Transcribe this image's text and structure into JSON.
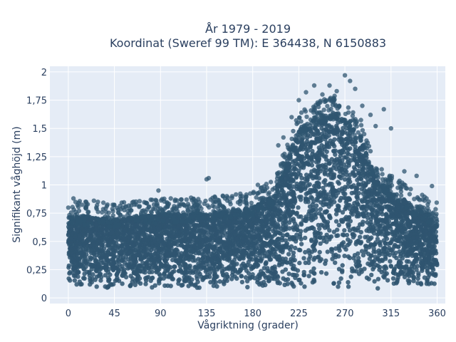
{
  "chart_data": {
    "type": "scatter",
    "title_lines": [
      "År 1979 - 2019",
      "Koordinat (Sweref 99 TM): E 364438, N 6150883"
    ],
    "xlabel": "Vågriktning (grader)",
    "ylabel": "Signifikant våghöjd (m)",
    "xlim": [
      -18,
      368
    ],
    "ylim": [
      -0.05,
      2.05
    ],
    "x_ticks": [
      0,
      45,
      90,
      135,
      180,
      225,
      270,
      315,
      360
    ],
    "x_tick_labels": [
      "0",
      "45",
      "90",
      "135",
      "180",
      "225",
      "270",
      "315",
      "360"
    ],
    "y_ticks": [
      0,
      0.25,
      0.5,
      0.75,
      1,
      1.25,
      1.5,
      1.75,
      2
    ],
    "y_tick_labels": [
      "0",
      "0,25",
      "0,5",
      "0,75",
      "1",
      "1,25",
      "1,5",
      "1,75",
      "2"
    ],
    "grid": true,
    "legend": "none",
    "colors": {
      "marker": "#2f5570",
      "plot_background": "#e5ecf6",
      "grid": "#ffffff"
    },
    "envelope": {
      "direction": [
        0,
        20,
        45,
        90,
        135,
        180,
        200,
        225,
        245,
        260,
        270,
        285,
        300,
        315,
        340,
        360
      ],
      "min_height": [
        0.1,
        0.1,
        0.07,
        0.08,
        0.08,
        0.08,
        0.08,
        0.08,
        0.08,
        0.08,
        0.08,
        0.08,
        0.08,
        0.08,
        0.1,
        0.1
      ],
      "max_height": [
        0.72,
        0.72,
        0.7,
        0.74,
        0.75,
        0.8,
        0.9,
        1.5,
        1.62,
        1.65,
        1.6,
        1.45,
        1.05,
        0.95,
        0.8,
        0.7
      ]
    },
    "outliers": [
      {
        "x": 5,
        "y": 0.88
      },
      {
        "x": 10,
        "y": 0.84
      },
      {
        "x": 25,
        "y": 0.86
      },
      {
        "x": 88,
        "y": 0.95
      },
      {
        "x": 100,
        "y": 0.88
      },
      {
        "x": 110,
        "y": 0.87
      },
      {
        "x": 135,
        "y": 1.05
      },
      {
        "x": 137,
        "y": 1.06
      },
      {
        "x": 160,
        "y": 0.9
      },
      {
        "x": 185,
        "y": 1.0
      },
      {
        "x": 205,
        "y": 1.35
      },
      {
        "x": 210,
        "y": 1.42
      },
      {
        "x": 218,
        "y": 1.6
      },
      {
        "x": 225,
        "y": 1.75
      },
      {
        "x": 232,
        "y": 1.82
      },
      {
        "x": 240,
        "y": 1.88
      },
      {
        "x": 248,
        "y": 1.8
      },
      {
        "x": 255,
        "y": 1.88
      },
      {
        "x": 262,
        "y": 1.83
      },
      {
        "x": 270,
        "y": 1.97
      },
      {
        "x": 275,
        "y": 1.92
      },
      {
        "x": 280,
        "y": 1.85
      },
      {
        "x": 287,
        "y": 1.7
      },
      {
        "x": 295,
        "y": 1.62
      },
      {
        "x": 300,
        "y": 1.52
      },
      {
        "x": 308,
        "y": 1.67
      },
      {
        "x": 315,
        "y": 1.5
      },
      {
        "x": 328,
        "y": 1.12
      },
      {
        "x": 340,
        "y": 1.08
      },
      {
        "x": 355,
        "y": 0.99
      }
    ]
  }
}
